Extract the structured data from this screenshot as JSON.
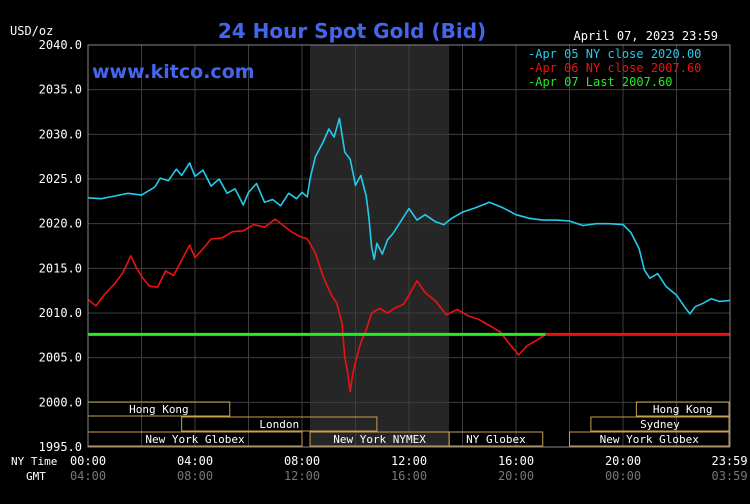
{
  "chart_data": {
    "type": "line",
    "title": "24 Hour Spot Gold (Bid)",
    "unit_label": "USD/oz",
    "datetime": "April 07, 2023 23:59",
    "watermark": "www.kitco.com",
    "ylim": [
      1995,
      2040
    ],
    "y_ticks": [
      "2040.0",
      "2035.0",
      "2030.0",
      "2025.0",
      "2020.0",
      "2015.0",
      "2010.0",
      "2005.0",
      "2000.0",
      "1995.0"
    ],
    "x_axis_label_ny": "NY Time",
    "x_axis_label_gmt": "GMT",
    "x_ticks_ny": [
      "00:00",
      "04:00",
      "08:00",
      "12:00",
      "16:00",
      "20:00",
      "23:59"
    ],
    "x_ticks_gmt": [
      "04:00",
      "08:00",
      "12:00",
      "16:00",
      "20:00",
      "00:00",
      "03:59"
    ],
    "x_ticks_hours": [
      0,
      4,
      8,
      12,
      16,
      20,
      23.983
    ],
    "legend": [
      {
        "label": "Apr 05 NY close 2020.00",
        "color": "#22ccee"
      },
      {
        "label": "Apr 06 NY close 2007.60",
        "color": "#ee1111"
      },
      {
        "label": "Apr 07 Last 2007.60",
        "color": "#22ee22"
      }
    ],
    "highlight_hours": [
      8.3,
      13.5
    ],
    "sessions": {
      "top_row": [
        {
          "name": "Hong Kong",
          "start": 0,
          "end": 5.3
        },
        {
          "name": "Hong Kong",
          "start": 20.5,
          "end": 24
        }
      ],
      "middle_row": [
        {
          "name": "London",
          "start": 3.5,
          "end": 10.8
        },
        {
          "name": "Sydney",
          "start": 18.8,
          "end": 24
        }
      ],
      "bottom_row": [
        {
          "name": "New York Globex",
          "start": 0,
          "end": 8
        },
        {
          "name": "New York NYMEX",
          "start": 8.3,
          "end": 13.5
        },
        {
          "name": "NY Globex",
          "start": 13.5,
          "end": 17
        },
        {
          "name": "New York Globex",
          "start": 18,
          "end": 24
        }
      ]
    },
    "series": [
      {
        "name": "Apr 05",
        "color": "#22ccee",
        "points": [
          [
            0,
            2022.9
          ],
          [
            0.5,
            2022.8
          ],
          [
            1,
            2023.1
          ],
          [
            1.5,
            2023.4
          ],
          [
            2,
            2023.2
          ],
          [
            2.5,
            2024.1
          ],
          [
            2.7,
            2025.1
          ],
          [
            3,
            2024.8
          ],
          [
            3.3,
            2026.1
          ],
          [
            3.5,
            2025.4
          ],
          [
            3.8,
            2026.8
          ],
          [
            4,
            2025.3
          ],
          [
            4.3,
            2026.0
          ],
          [
            4.6,
            2024.2
          ],
          [
            4.9,
            2025.0
          ],
          [
            5.2,
            2023.4
          ],
          [
            5.5,
            2023.9
          ],
          [
            5.8,
            2022.1
          ],
          [
            6,
            2023.5
          ],
          [
            6.3,
            2024.5
          ],
          [
            6.6,
            2022.4
          ],
          [
            6.9,
            2022.7
          ],
          [
            7.2,
            2022.0
          ],
          [
            7.5,
            2023.4
          ],
          [
            7.8,
            2022.8
          ],
          [
            8,
            2023.5
          ],
          [
            8.2,
            2023.0
          ],
          [
            8.3,
            2025.0
          ],
          [
            8.5,
            2027.5
          ],
          [
            8.8,
            2029.2
          ],
          [
            9,
            2030.6
          ],
          [
            9.2,
            2029.7
          ],
          [
            9.4,
            2031.8
          ],
          [
            9.6,
            2028.0
          ],
          [
            9.8,
            2027.2
          ],
          [
            10,
            2024.3
          ],
          [
            10.2,
            2025.4
          ],
          [
            10.4,
            2023.1
          ],
          [
            10.5,
            2020.7
          ],
          [
            10.6,
            2017.4
          ],
          [
            10.7,
            2016.0
          ],
          [
            10.8,
            2017.8
          ],
          [
            11,
            2016.6
          ],
          [
            11.2,
            2018.2
          ],
          [
            11.4,
            2018.9
          ],
          [
            11.7,
            2020.3
          ],
          [
            12,
            2021.7
          ],
          [
            12.3,
            2020.4
          ],
          [
            12.6,
            2021.0
          ],
          [
            13,
            2020.2
          ],
          [
            13.3,
            2019.9
          ],
          [
            13.6,
            2020.6
          ],
          [
            14,
            2021.3
          ],
          [
            14.5,
            2021.8
          ],
          [
            15,
            2022.4
          ],
          [
            15.5,
            2021.8
          ],
          [
            16,
            2021.0
          ],
          [
            16.5,
            2020.6
          ],
          [
            17,
            2020.4
          ],
          [
            17.5,
            2020.4
          ],
          [
            18,
            2020.3
          ],
          [
            18.5,
            2019.8
          ],
          [
            19,
            2020.0
          ],
          [
            19.5,
            2020.0
          ],
          [
            20,
            2019.9
          ],
          [
            20.3,
            2019.0
          ],
          [
            20.6,
            2017.2
          ],
          [
            20.8,
            2014.8
          ],
          [
            21,
            2013.9
          ],
          [
            21.3,
            2014.4
          ],
          [
            21.6,
            2013.0
          ],
          [
            22,
            2012.0
          ],
          [
            22.3,
            2010.7
          ],
          [
            22.5,
            2009.9
          ],
          [
            22.7,
            2010.7
          ],
          [
            23,
            2011.1
          ],
          [
            23.3,
            2011.6
          ],
          [
            23.6,
            2011.3
          ],
          [
            23.983,
            2011.4
          ]
        ]
      },
      {
        "name": "Apr 06",
        "color": "#ee1111",
        "points": [
          [
            0,
            2011.5
          ],
          [
            0.3,
            2010.8
          ],
          [
            0.6,
            2012.0
          ],
          [
            1,
            2013.3
          ],
          [
            1.3,
            2014.5
          ],
          [
            1.6,
            2016.4
          ],
          [
            1.8,
            2015.1
          ],
          [
            2,
            2014.1
          ],
          [
            2.3,
            2013.0
          ],
          [
            2.6,
            2012.9
          ],
          [
            2.9,
            2014.7
          ],
          [
            3.2,
            2014.2
          ],
          [
            3.5,
            2015.9
          ],
          [
            3.8,
            2017.6
          ],
          [
            4,
            2016.2
          ],
          [
            4.3,
            2017.2
          ],
          [
            4.6,
            2018.3
          ],
          [
            5,
            2018.4
          ],
          [
            5.4,
            2019.1
          ],
          [
            5.8,
            2019.2
          ],
          [
            6.2,
            2019.9
          ],
          [
            6.6,
            2019.6
          ],
          [
            7,
            2020.5
          ],
          [
            7.3,
            2019.8
          ],
          [
            7.6,
            2019.1
          ],
          [
            7.9,
            2018.6
          ],
          [
            8.2,
            2018.3
          ],
          [
            8.5,
            2016.7
          ],
          [
            8.8,
            2014.0
          ],
          [
            9.1,
            2012.0
          ],
          [
            9.3,
            2011.1
          ],
          [
            9.5,
            2008.8
          ],
          [
            9.6,
            2005.0
          ],
          [
            9.7,
            2003.5
          ],
          [
            9.8,
            2001.2
          ],
          [
            9.9,
            2003.2
          ],
          [
            10,
            2004.5
          ],
          [
            10.2,
            2006.7
          ],
          [
            10.4,
            2008.1
          ],
          [
            10.6,
            2010.0
          ],
          [
            10.9,
            2010.5
          ],
          [
            11.2,
            2010.0
          ],
          [
            11.5,
            2010.6
          ],
          [
            11.8,
            2011.0
          ],
          [
            12,
            2012.0
          ],
          [
            12.3,
            2013.6
          ],
          [
            12.6,
            2012.3
          ],
          [
            13,
            2011.3
          ],
          [
            13.4,
            2009.8
          ],
          [
            13.8,
            2010.4
          ],
          [
            14.2,
            2009.7
          ],
          [
            14.6,
            2009.3
          ],
          [
            15,
            2008.6
          ],
          [
            15.4,
            2007.9
          ],
          [
            15.8,
            2006.4
          ],
          [
            16.1,
            2005.3
          ],
          [
            16.4,
            2006.3
          ],
          [
            16.8,
            2007.0
          ],
          [
            17.1,
            2007.6
          ]
        ]
      },
      {
        "name": "Apr 07",
        "color": "#22ee22",
        "points": [
          [
            0,
            2007.6
          ],
          [
            17.1,
            2007.6
          ]
        ]
      },
      {
        "name": "Apr 06 close",
        "color": "#ee1111",
        "points": [
          [
            17.1,
            2007.6
          ],
          [
            23.983,
            2007.6
          ]
        ]
      }
    ]
  }
}
